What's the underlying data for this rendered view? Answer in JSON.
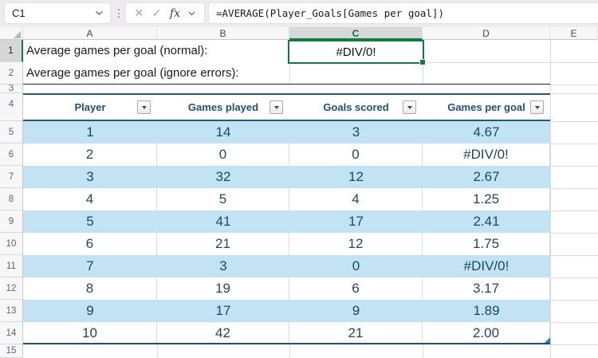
{
  "formula_bar": {
    "name_box_value": "C1",
    "cancel_icon": "✕",
    "enter_icon": "✓",
    "fx_label": "fx",
    "formula": "=AVERAGE(Player_Goals[Games per goal])"
  },
  "sheet": {
    "column_letters": [
      "A",
      "B",
      "C",
      "D",
      "E"
    ],
    "selected_column": "C",
    "selected_row": "1",
    "row_numbers": [
      "1",
      "2",
      "3",
      "4",
      "5",
      "6",
      "7",
      "8",
      "9",
      "10",
      "11",
      "12",
      "13",
      "14",
      "15"
    ],
    "a1_label": "Average games per goal (normal):",
    "a2_label": "Average games per goal (ignore errors):",
    "c1_value": "#DIV/0!"
  },
  "table": {
    "headers": [
      "Player",
      "Games played",
      "Goals scored",
      "Games per goal"
    ],
    "rows": [
      [
        "1",
        "14",
        "3",
        "4.67"
      ],
      [
        "2",
        "0",
        "0",
        "#DIV/0!"
      ],
      [
        "3",
        "32",
        "12",
        "2.67"
      ],
      [
        "4",
        "5",
        "4",
        "1.25"
      ],
      [
        "5",
        "41",
        "17",
        "2.41"
      ],
      [
        "6",
        "21",
        "12",
        "1.75"
      ],
      [
        "7",
        "3",
        "0",
        "#DIV/0!"
      ],
      [
        "8",
        "19",
        "6",
        "3.17"
      ],
      [
        "9",
        "17",
        "9",
        "1.89"
      ],
      [
        "10",
        "42",
        "21",
        "2.00"
      ]
    ]
  },
  "colors": {
    "selection_green": "#107C41",
    "band_blue": "#C2E3F3",
    "table_border_blue": "#1F5B78",
    "table_border_dark": "#1F4E79",
    "data_text": "#1C4863",
    "header_text": "#1F4E79"
  }
}
